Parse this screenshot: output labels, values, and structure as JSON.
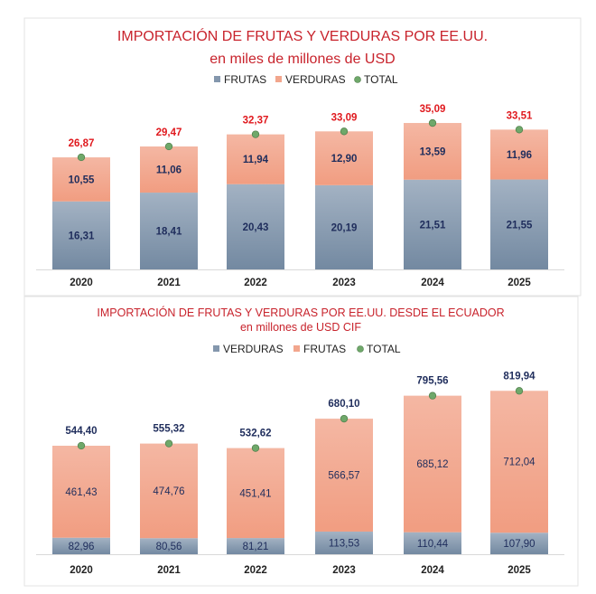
{
  "colors": {
    "blue": "#8497ad",
    "salmon": "#f2a68d",
    "total_dot": "#6fa86a",
    "title_red": "#c8232c",
    "value_navy": "#1f2d5c",
    "total_red": "#e0191e"
  },
  "chart_data": [
    {
      "type": "bar",
      "stacked": true,
      "title": "IMPORTACIÓN DE FRUTAS Y VERDURAS POR EE.UU.",
      "subtitle": "en miles de millones de USD",
      "legend_position": "top",
      "grid": false,
      "categories": [
        "2020",
        "2021",
        "2022",
        "2023",
        "2024",
        "2025"
      ],
      "series": [
        {
          "name": "FRUTAS",
          "color": "#8497ad",
          "values": [
            16.31,
            18.41,
            20.43,
            20.19,
            21.51,
            21.55
          ],
          "labels": [
            "16,31",
            "18,41",
            "20,43",
            "20,19",
            "21,51",
            "21,55"
          ]
        },
        {
          "name": "VERDURAS",
          "color": "#f2a68d",
          "values": [
            10.55,
            11.06,
            11.94,
            12.9,
            13.59,
            11.96
          ],
          "labels": [
            "10,55",
            "11,06",
            "11,94",
            "12,90",
            "13,59",
            "11,96"
          ]
        },
        {
          "name": "TOTAL",
          "color": "#6fa86a",
          "marker": "dot",
          "values": [
            26.87,
            29.47,
            32.37,
            33.09,
            35.09,
            33.51
          ],
          "labels": [
            "26,87",
            "29,47",
            "32,37",
            "33,09",
            "35,09",
            "33,51"
          ]
        }
      ],
      "ylim": [
        0,
        40
      ]
    },
    {
      "type": "bar",
      "stacked": true,
      "title": "IMPORTACIÓN DE FRUTAS Y VERDURAS POR EE.UU. DESDE EL ECUADOR",
      "subtitle": "en millones de USD CIF",
      "legend_position": "top",
      "grid": false,
      "categories": [
        "2020",
        "2021",
        "2022",
        "2023",
        "2024",
        "2025"
      ],
      "series": [
        {
          "name": "VERDURAS",
          "color": "#8497ad",
          "values": [
            82.96,
            80.56,
            81.21,
            113.53,
            110.44,
            107.9
          ],
          "labels": [
            "82,96",
            "80,56",
            "81,21",
            "113,53",
            "110,44",
            "107,90"
          ]
        },
        {
          "name": "FRUTAS",
          "color": "#f2a68d",
          "values": [
            461.43,
            474.76,
            451.41,
            566.57,
            685.12,
            712.04
          ],
          "labels": [
            "461,43",
            "474,76",
            "451,41",
            "566,57",
            "685,12",
            "712,04"
          ]
        },
        {
          "name": "TOTAL",
          "color": "#6fa86a",
          "marker": "dot",
          "values": [
            544.4,
            555.32,
            532.62,
            680.1,
            795.56,
            819.94
          ],
          "labels": [
            "544,40",
            "555,32",
            "532,62",
            "680,10",
            "795,56",
            "819,94"
          ]
        }
      ],
      "ylim": [
        0,
        900
      ]
    }
  ]
}
